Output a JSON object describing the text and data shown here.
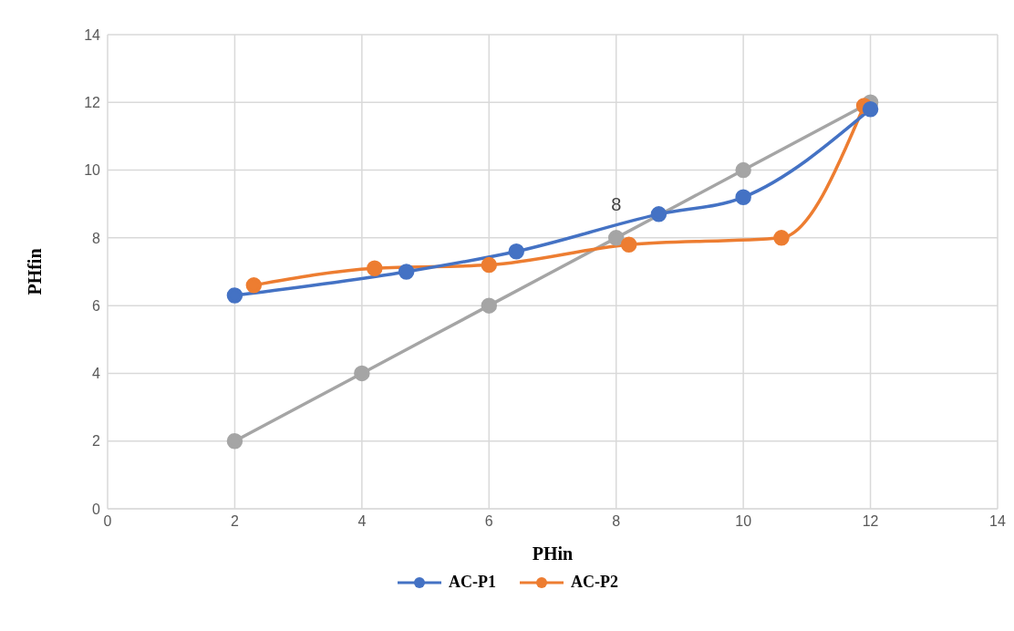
{
  "chart_data": {
    "type": "line",
    "xlabel": "PHin",
    "ylabel": "PHfin",
    "xlim": [
      0,
      14
    ],
    "xticks": [
      0,
      2,
      4,
      6,
      8,
      10,
      12,
      14
    ],
    "ylim": [
      0,
      14
    ],
    "yticks": [
      0,
      2,
      4,
      6,
      8,
      10,
      12,
      14
    ],
    "grid": true,
    "legend": "bottom",
    "marker": "circle",
    "line_style": "solid",
    "series": [
      {
        "name": "AC-P1",
        "color": "#4472c4",
        "x": [
          2,
          4.7,
          6.43,
          8.67,
          10,
          12
        ],
        "values": [
          6.3,
          7.0,
          7.6,
          8.7,
          9.2,
          11.8
        ]
      },
      {
        "name": "AC-P2",
        "color": "#ed7d31",
        "x": [
          2.3,
          4.2,
          6,
          8.2,
          10.6,
          11.9
        ],
        "values": [
          6.6,
          7.1,
          7.2,
          7.8,
          8.0,
          11.9
        ]
      },
      {
        "color": "#a5a5a5",
        "x": [
          2,
          4,
          6,
          8,
          10,
          12
        ],
        "values": [
          2,
          4,
          6,
          8,
          10,
          12
        ]
      }
    ],
    "annotations": [
      {
        "text": "8",
        "x": 8,
        "y": 8
      }
    ]
  }
}
